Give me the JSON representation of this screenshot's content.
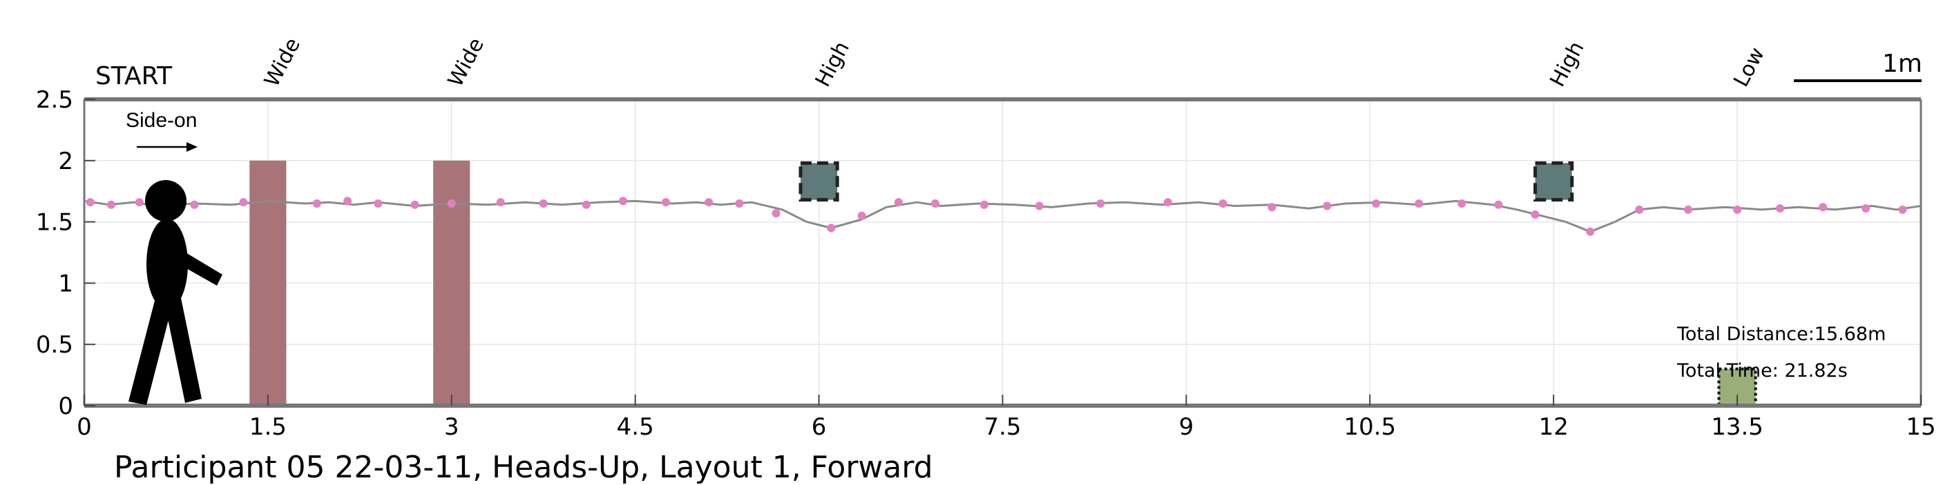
{
  "caption": "Participant 05 22-03-11, Heads-Up, Layout 1, Forward",
  "start_label": "START",
  "direction_label": "Side-on",
  "scale_bar_label": "1m",
  "total_distance": "Total Distance:15.68m",
  "total_time": "Total Time: 21.82s",
  "colors": {
    "wide_obstacle": "#a87478",
    "high_obstacle": "#5e7a7a",
    "low_obstacle": "#9aae78",
    "path_line": "#8a8a8a",
    "step_marker": "#e080c0",
    "axis": "#777777",
    "grid": "#e6e6e6"
  },
  "icons": {
    "walker": "person-walking-icon",
    "arrow": "right-arrow-icon"
  },
  "chart_data": {
    "type": "line",
    "xlim": [
      0,
      15
    ],
    "ylim": [
      0,
      2.5
    ],
    "x_ticks": [
      0,
      1.5,
      3,
      4.5,
      6,
      7.5,
      9,
      10.5,
      12,
      13.5,
      15
    ],
    "x_tick_labels": [
      "0",
      "1.5",
      "3",
      "4.5",
      "6",
      "7.5",
      "9",
      "10.5",
      "12",
      "13.5",
      "15"
    ],
    "y_ticks": [
      0,
      0.5,
      1,
      1.5,
      2,
      2.5
    ],
    "y_tick_labels": [
      "0",
      "0.5",
      "1",
      "1.5",
      "2",
      "2.5"
    ],
    "grid": true,
    "obstacles": [
      {
        "label": "Wide",
        "kind": "wide",
        "x_start": 1.35,
        "x_end": 1.65,
        "y_bottom": 0,
        "y_top": 2.0
      },
      {
        "label": "Wide",
        "kind": "wide",
        "x_start": 2.85,
        "x_end": 3.15,
        "y_bottom": 0,
        "y_top": 2.0
      },
      {
        "label": "High",
        "kind": "high",
        "x_start": 5.85,
        "x_end": 6.15,
        "y_bottom": 1.68,
        "y_top": 1.98
      },
      {
        "label": "High",
        "kind": "high",
        "x_start": 11.85,
        "x_end": 12.15,
        "y_bottom": 1.68,
        "y_top": 1.98
      },
      {
        "label": "Low",
        "kind": "low",
        "x_start": 13.35,
        "x_end": 13.65,
        "y_bottom": 0,
        "y_top": 0.3
      }
    ],
    "path": {
      "x": [
        0,
        0.2,
        0.4,
        0.6,
        0.9,
        1.2,
        1.5,
        1.8,
        2.0,
        2.2,
        2.4,
        2.7,
        3.0,
        3.3,
        3.6,
        3.9,
        4.2,
        4.5,
        4.8,
        5.0,
        5.2,
        5.45,
        5.7,
        5.9,
        6.1,
        6.35,
        6.55,
        6.8,
        7.0,
        7.3,
        7.6,
        7.9,
        8.2,
        8.5,
        8.8,
        9.1,
        9.4,
        9.7,
        10.0,
        10.3,
        10.6,
        10.9,
        11.2,
        11.5,
        11.7,
        11.9,
        12.1,
        12.3,
        12.5,
        12.7,
        12.9,
        13.1,
        13.4,
        13.7,
        14.0,
        14.3,
        14.6,
        14.8,
        15.0
      ],
      "y": [
        1.67,
        1.64,
        1.66,
        1.63,
        1.65,
        1.64,
        1.67,
        1.65,
        1.66,
        1.64,
        1.66,
        1.63,
        1.65,
        1.64,
        1.66,
        1.64,
        1.66,
        1.67,
        1.65,
        1.66,
        1.64,
        1.66,
        1.6,
        1.5,
        1.45,
        1.52,
        1.62,
        1.66,
        1.63,
        1.65,
        1.64,
        1.62,
        1.65,
        1.66,
        1.64,
        1.66,
        1.63,
        1.64,
        1.61,
        1.65,
        1.66,
        1.64,
        1.67,
        1.64,
        1.6,
        1.55,
        1.5,
        1.42,
        1.5,
        1.6,
        1.62,
        1.6,
        1.62,
        1.6,
        1.62,
        1.6,
        1.63,
        1.6,
        1.63
      ]
    },
    "steps": {
      "x": [
        0.05,
        0.22,
        0.45,
        0.9,
        1.3,
        1.9,
        2.15,
        2.4,
        2.7,
        3.0,
        3.4,
        3.75,
        4.1,
        4.4,
        4.75,
        5.1,
        5.35,
        5.65,
        6.1,
        6.35,
        6.65,
        6.95,
        7.35,
        7.8,
        8.3,
        8.85,
        9.3,
        9.7,
        10.15,
        10.55,
        10.9,
        11.25,
        11.55,
        11.85,
        12.3,
        12.7,
        13.1,
        13.5,
        13.85,
        14.2,
        14.55,
        14.85
      ],
      "y": [
        1.66,
        1.64,
        1.66,
        1.64,
        1.66,
        1.65,
        1.67,
        1.65,
        1.64,
        1.65,
        1.66,
        1.65,
        1.64,
        1.67,
        1.66,
        1.66,
        1.65,
        1.57,
        1.45,
        1.55,
        1.66,
        1.65,
        1.64,
        1.63,
        1.65,
        1.66,
        1.65,
        1.62,
        1.63,
        1.65,
        1.65,
        1.65,
        1.64,
        1.56,
        1.42,
        1.6,
        1.6,
        1.6,
        1.61,
        1.62,
        1.61,
        1.6
      ]
    }
  }
}
